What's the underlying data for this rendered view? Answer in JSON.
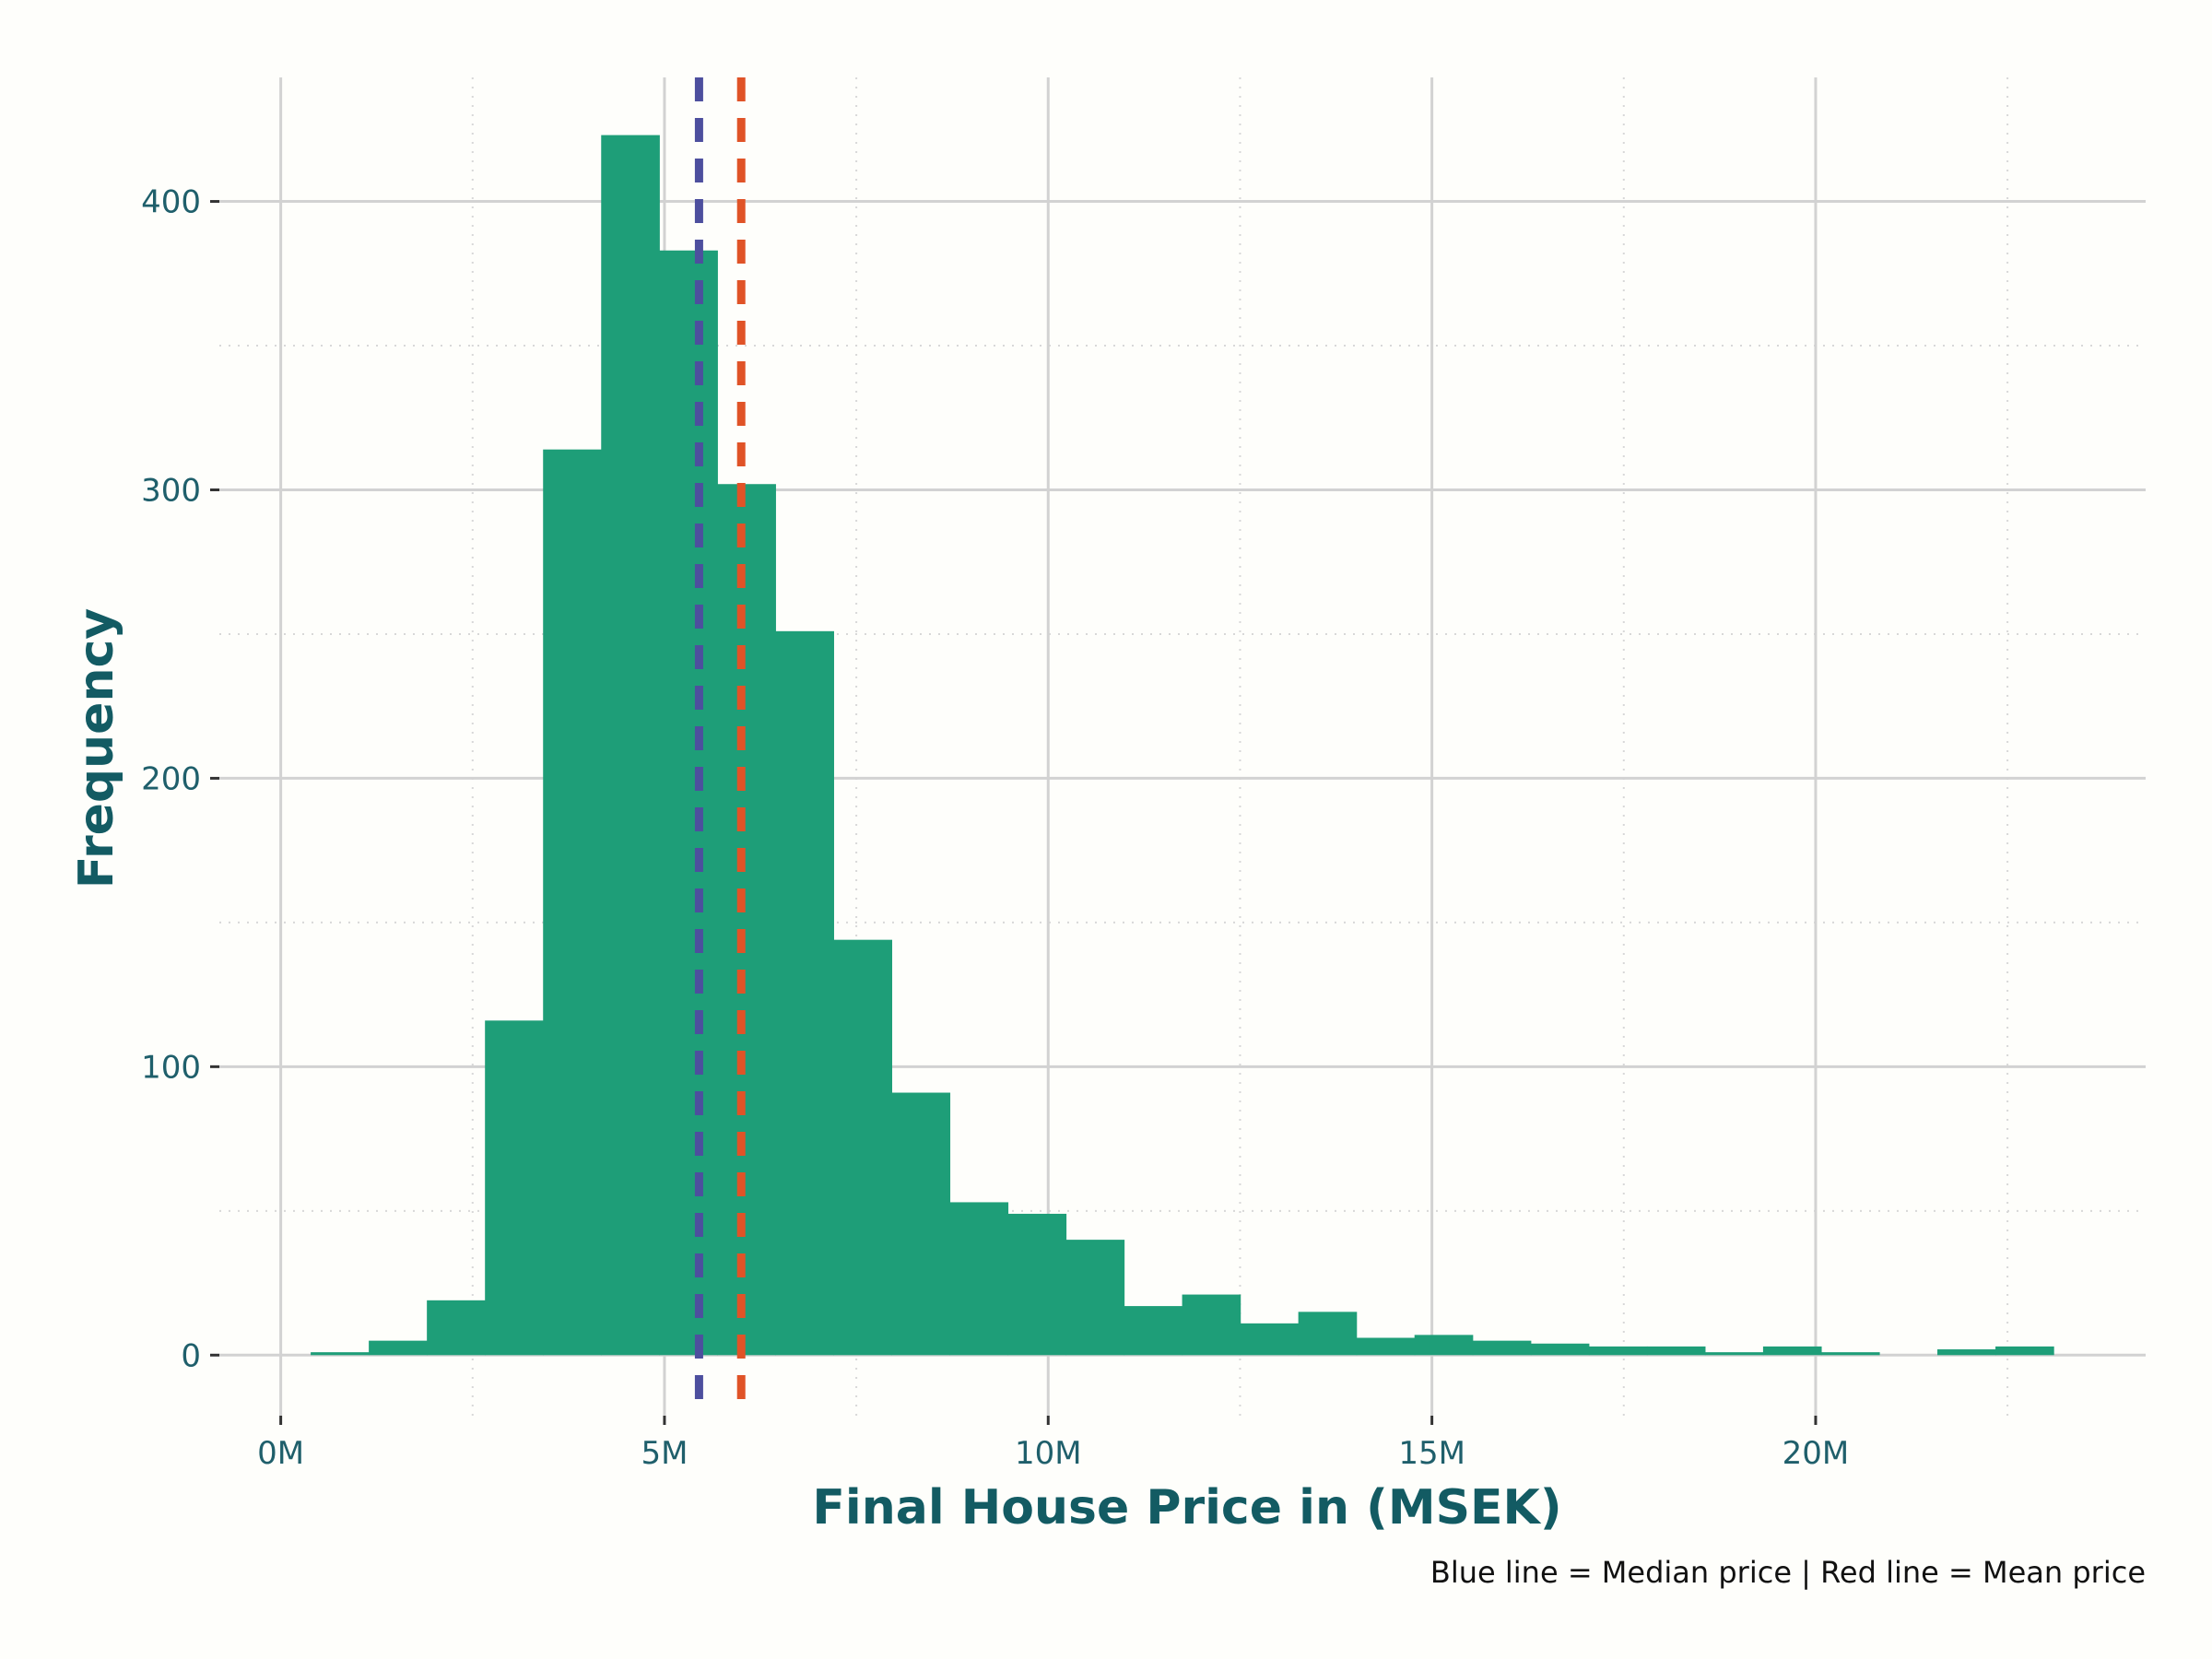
{
  "chart_data": {
    "type": "bar",
    "title": "",
    "xlabel": "Final House Price in (MSEK)",
    "ylabel": "Frequency",
    "caption": "Blue line = Median price | Red line = Mean price",
    "x_ticks": [
      {
        "value": 0,
        "label": "0M"
      },
      {
        "value": 5,
        "label": "5M"
      },
      {
        "value": 10,
        "label": "10M"
      },
      {
        "value": 15,
        "label": "15M"
      },
      {
        "value": 20,
        "label": "20M"
      }
    ],
    "y_ticks": [
      {
        "value": 0,
        "label": "0"
      },
      {
        "value": 100,
        "label": "100"
      },
      {
        "value": 200,
        "label": "200"
      },
      {
        "value": 300,
        "label": "300"
      },
      {
        "value": 400,
        "label": "400"
      }
    ],
    "x_minor_ticks": [
      2.5,
      7.5,
      12.5,
      17.5,
      22.5
    ],
    "y_minor_ticks": [
      50,
      150,
      250,
      350
    ],
    "xlim": [
      -0.8,
      24.3
    ],
    "ylim": [
      -21,
      443
    ],
    "bin_width": 0.757,
    "bins": [
      {
        "x0": 0.39,
        "count": 1
      },
      {
        "x0": 1.147,
        "count": 5
      },
      {
        "x0": 1.904,
        "count": 19
      },
      {
        "x0": 2.661,
        "count": 116
      },
      {
        "x0": 3.418,
        "count": 314
      },
      {
        "x0": 4.175,
        "count": 423
      },
      {
        "x0": 4.932,
        "count": 383
      },
      {
        "x0": 5.689,
        "count": 302
      },
      {
        "x0": 6.446,
        "count": 251
      },
      {
        "x0": 7.203,
        "count": 144
      },
      {
        "x0": 7.96,
        "count": 91
      },
      {
        "x0": 8.717,
        "count": 53
      },
      {
        "x0": 9.474,
        "count": 49
      },
      {
        "x0": 10.231,
        "count": 40
      },
      {
        "x0": 10.988,
        "count": 17
      },
      {
        "x0": 11.745,
        "count": 21
      },
      {
        "x0": 12.502,
        "count": 11
      },
      {
        "x0": 13.259,
        "count": 15
      },
      {
        "x0": 14.016,
        "count": 6
      },
      {
        "x0": 14.773,
        "count": 7
      },
      {
        "x0": 15.53,
        "count": 5
      },
      {
        "x0": 16.287,
        "count": 4
      },
      {
        "x0": 17.044,
        "count": 3
      },
      {
        "x0": 17.801,
        "count": 3
      },
      {
        "x0": 18.558,
        "count": 1
      },
      {
        "x0": 19.315,
        "count": 3
      },
      {
        "x0": 20.072,
        "count": 1
      },
      {
        "x0": 20.829,
        "count": 0
      },
      {
        "x0": 21.586,
        "count": 2
      },
      {
        "x0": 22.343,
        "count": 3
      }
    ],
    "reference_lines": [
      {
        "name": "Median price",
        "value": 5.45,
        "color": "#4d4f9e"
      },
      {
        "name": "Mean price",
        "value": 6.0,
        "color": "#e05327"
      }
    ],
    "colors": {
      "bar": "#1e9e78",
      "background": "#fefefb",
      "grid_major": "#d2d2d2",
      "grid_minor": "#d8d8d8",
      "tick_text": "#1f5f6b",
      "axis_title": "#135b63"
    },
    "grid": true
  }
}
